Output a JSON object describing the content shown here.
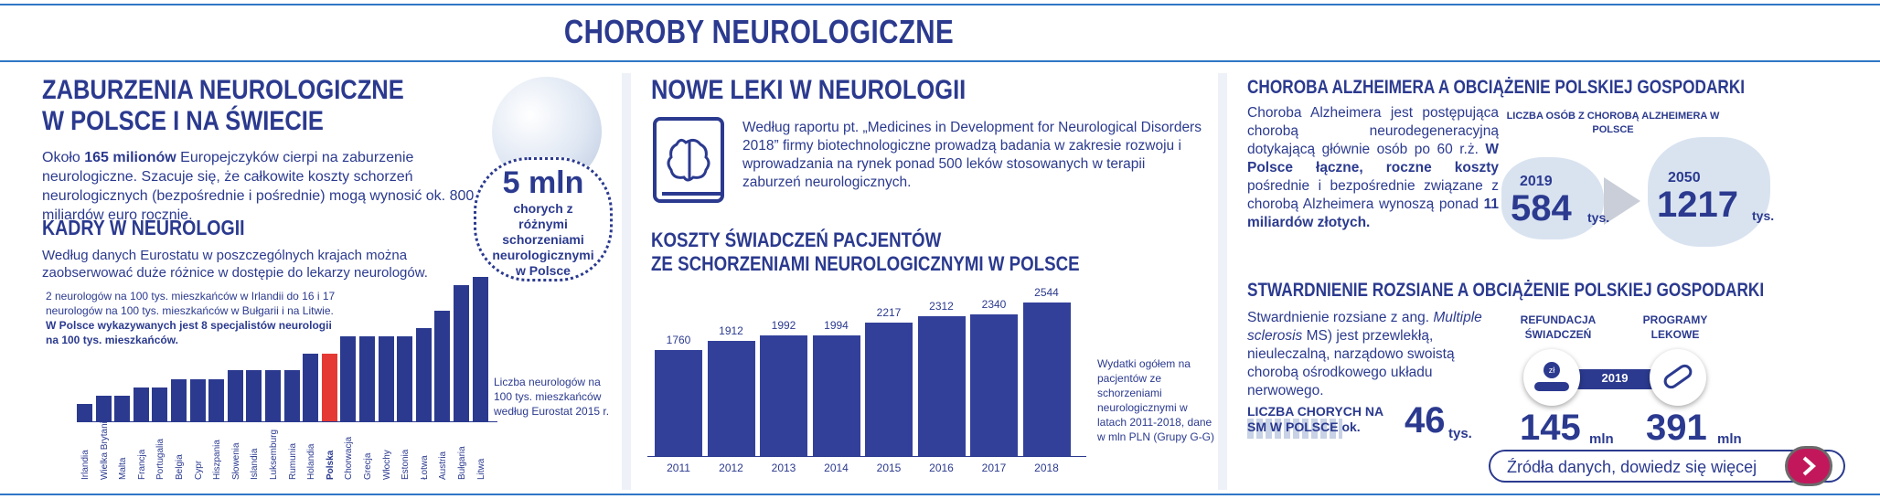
{
  "header": {
    "title": "CHOROBY NEUROLOGICZNE"
  },
  "left": {
    "title_line1": "ZABURZENIA NEUROLOGICZNE",
    "title_line2": "W POLSCE I NA ŚWIECIE",
    "intro_pre": "Około ",
    "intro_bold": "165 milionów",
    "intro_post": " Europejczyków cierpi na zaburzenie neurologiczne. Szacuje się, że całkowite koszty schorzeń neurologicznych (bezpośrednie i pośrednie) mogą wynosić ok. 800 miliardów euro rocznie.",
    "badge_value": "5 mln",
    "badge_text": "chorych z różnymi schorzeniami neurologicznymi w Polsce",
    "section_title": "KADRY W NEUROLOGII",
    "section_text": "Według danych Eurostatu w poszczególnych krajach można zaobserwować duże różnice w dostępie do lekarzy neurologów.",
    "note_line1": "2 neurologów na 100 tys. mieszkańców w Irlandii do 16 i 17",
    "note_line2": "neurologów na 100 tys. mieszkańców w Bułgarii i na Litwie.",
    "note_bold": "W Polsce wykazywanych jest 8 specjalistów neurologii na 100 tys. mieszkańców.",
    "chart_caption": "Liczba neurologów na 100 tys. mieszkańców według Eurostat 2015 r."
  },
  "middle": {
    "title": "NOWE LEKI W NEUROLOGII",
    "text": "Według raportu pt. „Medicines in Development for Neurological Disorders 2018” firmy biotechnologiczne prowadzą badania w zakresie rozwoju i wprowadzania na rynek ponad 500 leków stosowanych w terapii zaburzeń neurologicznych.",
    "chart_title_line1": "KOSZTY ŚWIADCZEŃ PACJENTÓW",
    "chart_title_line2": "ZE SCHORZENIAMI NEUROLOGICZNYMI W POLSCE",
    "chart_caption": "Wydatki ogółem na pacjentów ze schorzeniami neurologicznymi w latach 2011-2018, dane w mln PLN (Grupy G-G)"
  },
  "right": {
    "alz_title": "CHOROBA ALZHEIMERA A OBCIĄŻENIE POLSKIEJ GOSPODARKI",
    "alz_text_pre": "Choroba Alzheimera jest postępująca chorobą neurodegeneracyjną dotykającą głównie osób po 60 r.ż. ",
    "alz_text_bold1": "W Polsce łączne, roczne koszty",
    "alz_text_mid": " pośrednie i bezpośrednie związane z chorobą Alzheimera wynoszą ponad ",
    "alz_text_bold2": "11 miliardów złotych.",
    "alz_map_title": "LICZBA OSÓB Z CHOROBĄ ALZHEIMERA W POLSCE",
    "alz_year1": "2019",
    "alz_value1": "584",
    "alz_unit1": "tys.",
    "alz_year2": "2050",
    "alz_value2": "1217",
    "alz_unit2": "tys.",
    "ms_title": "STWARDNIENIE ROZSIANE A OBCIĄŻENIE POLSKIEJ GOSPODARKI",
    "ms_text_pre": "Stwardnienie rozsiane z ang. ",
    "ms_text_italic": "Multiple sclerosis",
    "ms_text_post": " MS) jest przewlekłą, nieuleczalną, narządowo swoistą chorobą ośrodkowego układu nerwowego.",
    "ms_count_label": "LICZBA CHORYCH NA SM W POLSCE ok.",
    "ms_count_value": "46",
    "ms_count_unit": "tys.",
    "refund_label": "REFUNDACJA ŚWIADCZEŃ",
    "programs_label": "PROGRAMY LEKOWE",
    "ms_year": "2019",
    "refund_value": "145",
    "refund_unit": "mln",
    "programs_value": "391",
    "programs_unit": "mln",
    "coin_label": "zł",
    "sources_button": "Źródła danych, dowiedz się więcej"
  },
  "colors": {
    "navy": "#2b3a8f",
    "accent_blue": "#2f76c6",
    "poland_red": "#e53935",
    "button_magenta": "#c2185b"
  },
  "icons": [
    "brain-book-icon",
    "globe-icon",
    "people-icon",
    "hand-coin-icon",
    "pills-icon",
    "arrow-right-icon",
    "poland-map-icon"
  ],
  "chart_data": [
    {
      "type": "bar",
      "categories": [
        "Irlandia",
        "Wielka Brytania",
        "Malta",
        "Francja",
        "Portugalia",
        "Belgia",
        "Cypr",
        "Hiszpania",
        "Słowenia",
        "Islandia",
        "Luksemburg",
        "Rumunia",
        "Holandia",
        "Polska",
        "Chorwacja",
        "Grecja",
        "Włochy",
        "Estonia",
        "Łotwa",
        "Austria",
        "Bułgaria",
        "Litwa"
      ],
      "values": [
        2,
        3,
        3,
        4,
        4,
        5,
        5,
        5,
        6,
        6,
        6,
        6,
        8,
        8,
        10,
        10,
        10,
        10,
        11,
        13,
        16,
        17
      ],
      "highlight": "Polska",
      "ylim": [
        0,
        17
      ]
    },
    {
      "type": "bar",
      "categories": [
        "2011",
        "2012",
        "2013",
        "2014",
        "2015",
        "2016",
        "2017",
        "2018"
      ],
      "values": [
        1760,
        1912,
        1992,
        1994,
        2217,
        2312,
        2340,
        2544
      ],
      "ylim": [
        0,
        2544
      ]
    }
  ]
}
